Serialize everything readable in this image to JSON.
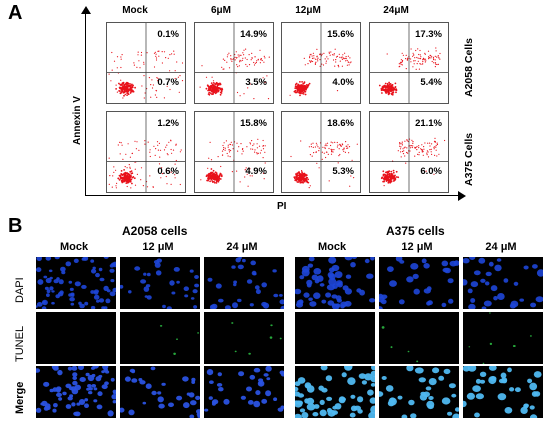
{
  "panel_a": {
    "letter": "A",
    "y_axis_label": "Annexin V",
    "x_axis_label": "PI",
    "columns": [
      "Mock",
      "6μM",
      "12μM",
      "24μM"
    ],
    "rows": [
      {
        "label": "A2058  Cells",
        "plots": [
          {
            "upper_right": "0.1%",
            "lower_right": "0.7%"
          },
          {
            "upper_right": "14.9%",
            "lower_right": "3.5%"
          },
          {
            "upper_right": "15.6%",
            "lower_right": "4.0%"
          },
          {
            "upper_right": "17.3%",
            "lower_right": "5.4%"
          }
        ]
      },
      {
        "label": "A375 Cells",
        "plots": [
          {
            "upper_right": "1.2%",
            "lower_right": "0.6%"
          },
          {
            "upper_right": "15.8%",
            "lower_right": "4.9%"
          },
          {
            "upper_right": "18.6%",
            "lower_right": "5.3%"
          },
          {
            "upper_right": "21.1%",
            "lower_right": "6.0%"
          }
        ]
      }
    ],
    "dot_color": "#e8121b"
  },
  "panel_b": {
    "letter": "B",
    "groups": [
      {
        "title": "A2058 cells",
        "columns": [
          "Mock",
          "12 μM",
          "24 μM"
        ]
      },
      {
        "title": "A375 cells",
        "columns": [
          "Mock",
          "12 μM",
          "24 μM"
        ]
      }
    ],
    "rows": [
      "DAPI",
      "TUNEL",
      "Merge"
    ],
    "stain_colors": {
      "dapi": "#1e46d8",
      "tunel": "#2fd14a",
      "merge": "#4fb8f0"
    }
  }
}
